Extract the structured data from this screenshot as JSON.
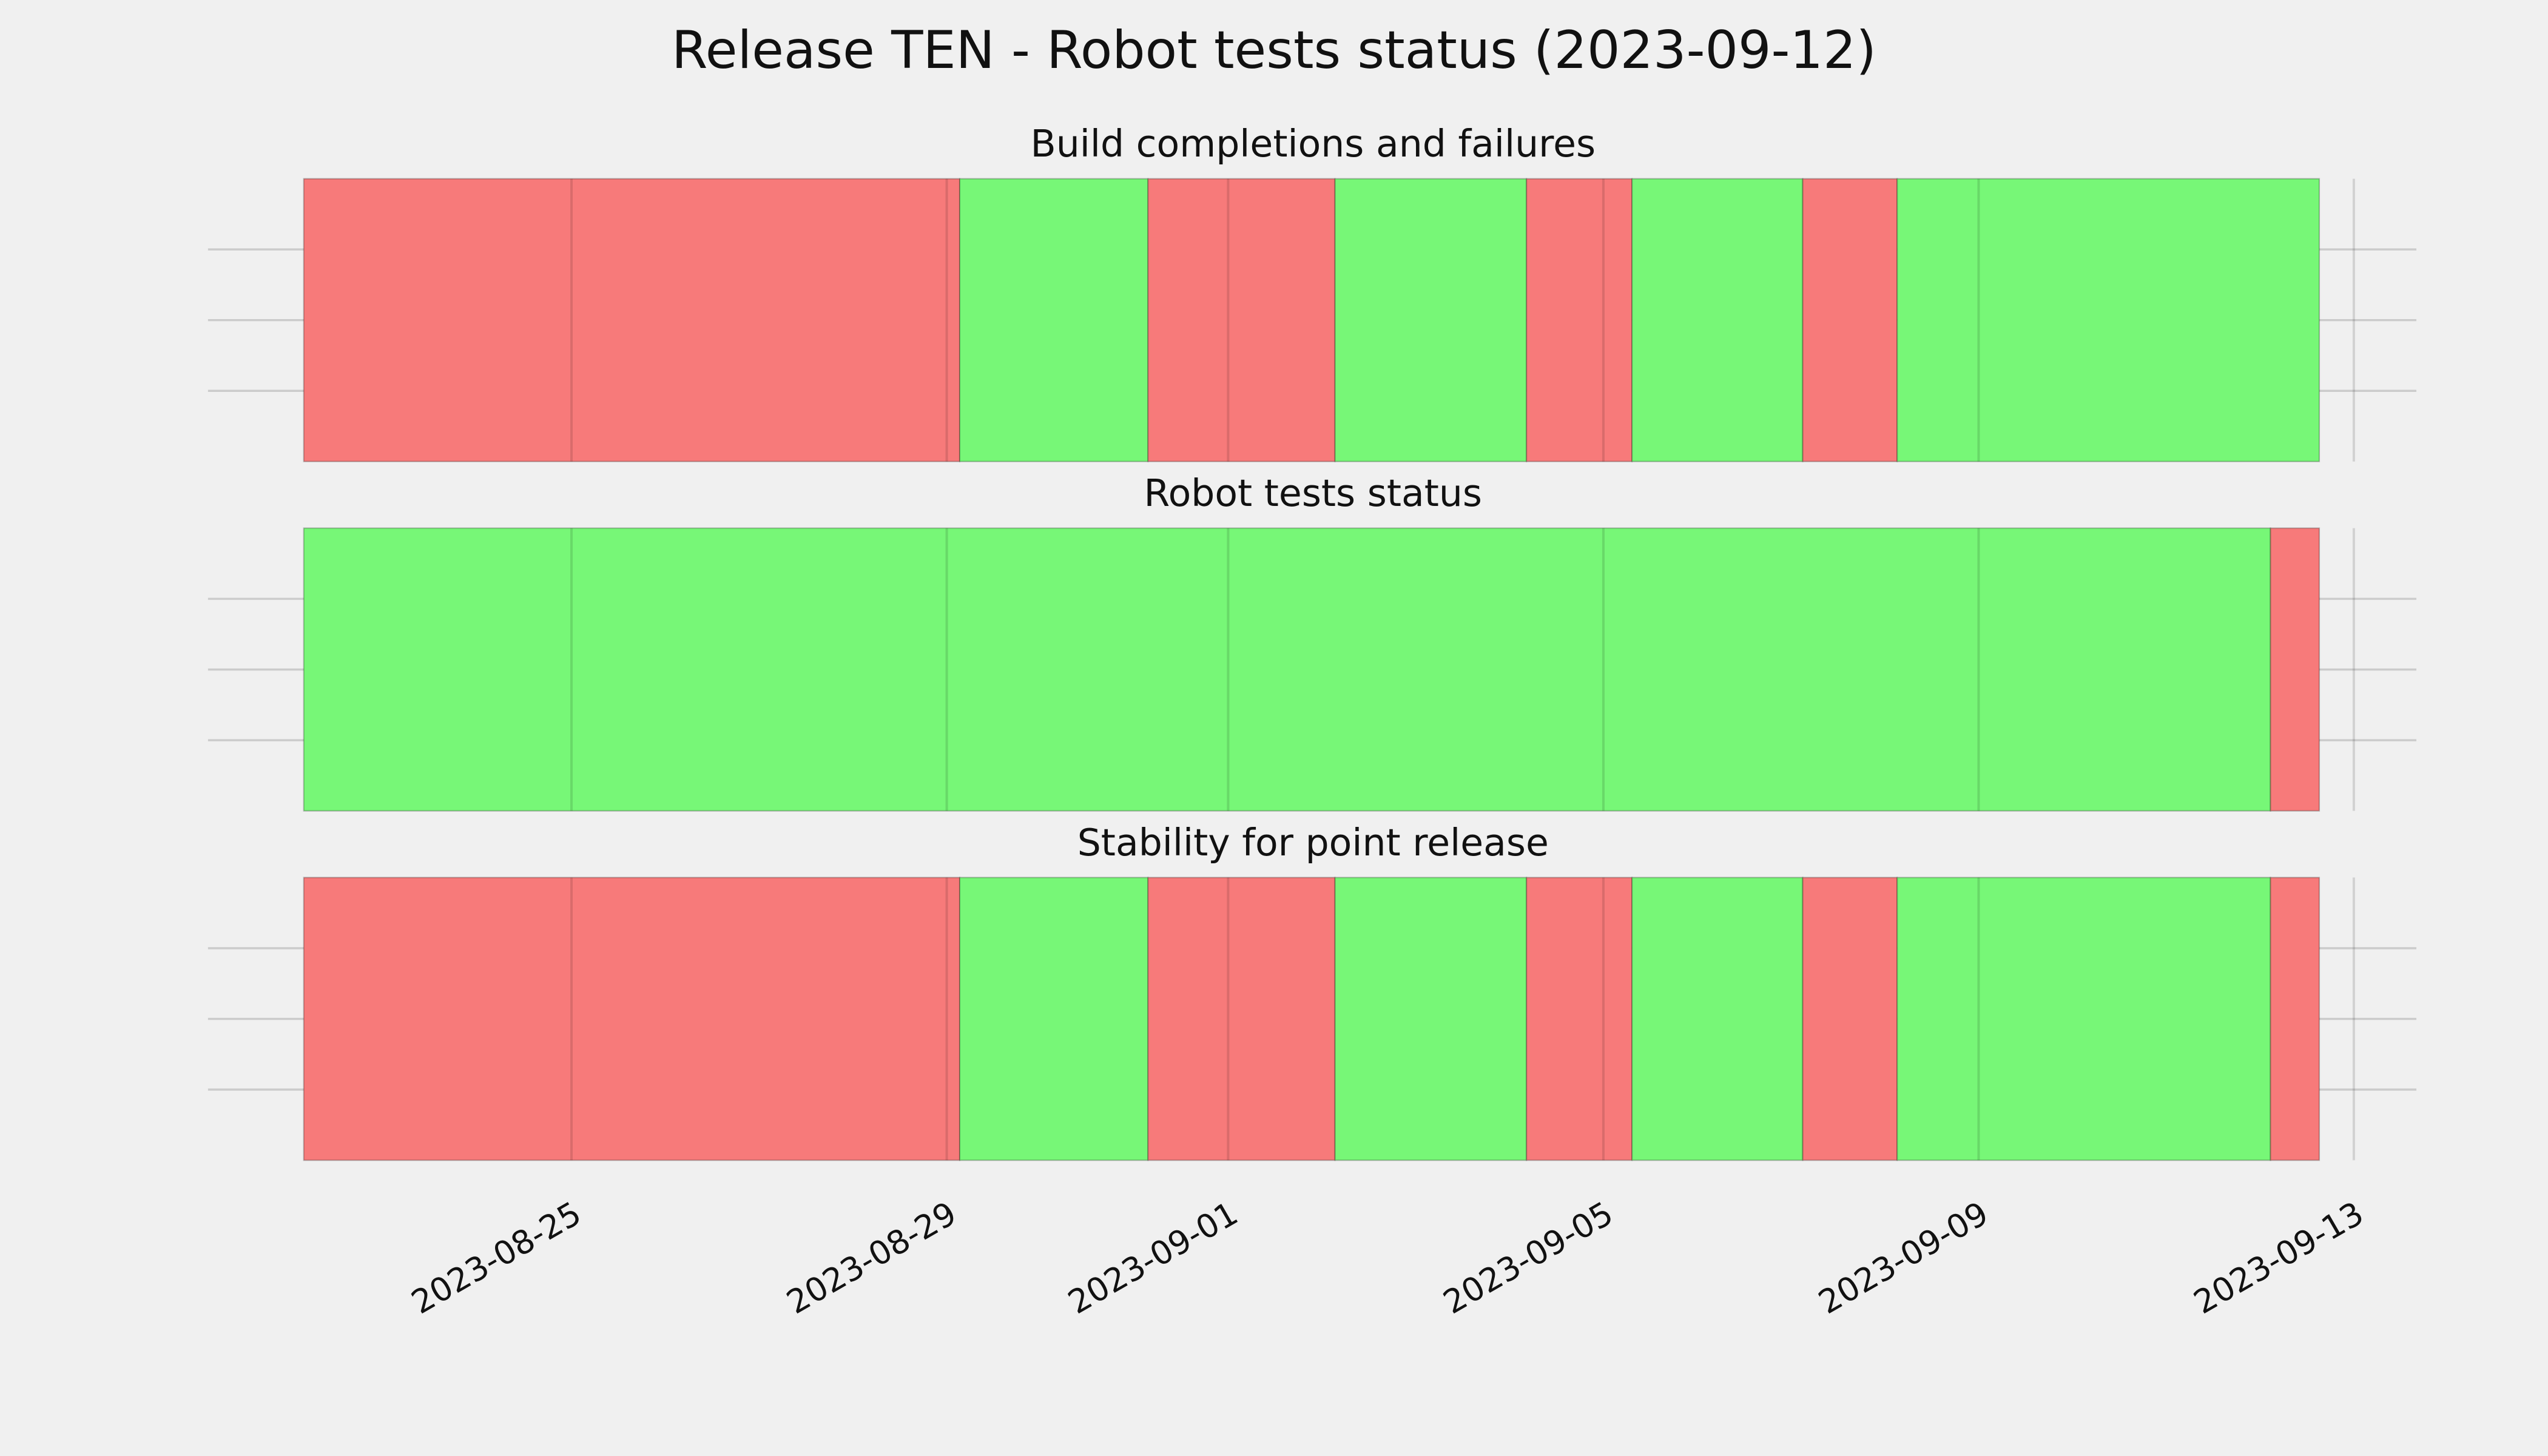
{
  "chart_data": {
    "type": "timeline",
    "title": "Release TEN - Robot tests status (2023-09-12)",
    "xlim": [
      "2023-08-21T03:00",
      "2023-09-13T16:00"
    ],
    "xticks": [
      "2023-08-25",
      "2023-08-29",
      "2023-09-01",
      "2023-09-05",
      "2023-09-09",
      "2023-09-13"
    ],
    "grid": true,
    "panels": [
      {
        "title": "Build completions and failures",
        "spans": [
          {
            "start": "2023-08-22T03:30",
            "end": "2023-08-29T03:20",
            "color": "#f77a7a"
          },
          {
            "start": "2023-08-29T03:20",
            "end": "2023-08-31T03:30",
            "color": "#77f777"
          },
          {
            "start": "2023-08-31T03:30",
            "end": "2023-09-02T03:20",
            "color": "#f77a7a"
          },
          {
            "start": "2023-09-02T03:20",
            "end": "2023-09-04T04:20",
            "color": "#77f777"
          },
          {
            "start": "2023-09-04T04:20",
            "end": "2023-09-05T07:20",
            "color": "#f77a7a"
          },
          {
            "start": "2023-09-05T07:20",
            "end": "2023-09-07T03:00",
            "color": "#77f777"
          },
          {
            "start": "2023-09-07T03:00",
            "end": "2023-09-08T03:10",
            "color": "#f77a7a"
          },
          {
            "start": "2023-09-08T03:10",
            "end": "2023-09-12T15:10",
            "color": "#77f777"
          }
        ]
      },
      {
        "title": "Robot tests status",
        "spans": [
          {
            "start": "2023-08-22T03:30",
            "end": "2023-09-12T02:40",
            "color": "#77f777"
          },
          {
            "start": "2023-09-12T02:40",
            "end": "2023-09-12T15:10",
            "color": "#f77a7a"
          }
        ]
      },
      {
        "title": "Stability for point release",
        "spans": [
          {
            "start": "2023-08-22T03:30",
            "end": "2023-08-29T03:20",
            "color": "#f77a7a"
          },
          {
            "start": "2023-08-29T03:20",
            "end": "2023-08-31T03:30",
            "color": "#77f777"
          },
          {
            "start": "2023-08-31T03:30",
            "end": "2023-09-02T03:20",
            "color": "#f77a7a"
          },
          {
            "start": "2023-09-02T03:20",
            "end": "2023-09-04T04:20",
            "color": "#77f777"
          },
          {
            "start": "2023-09-04T04:20",
            "end": "2023-09-05T07:20",
            "color": "#f77a7a"
          },
          {
            "start": "2023-09-05T07:20",
            "end": "2023-09-07T03:00",
            "color": "#77f777"
          },
          {
            "start": "2023-09-07T03:00",
            "end": "2023-09-08T03:10",
            "color": "#f77a7a"
          },
          {
            "start": "2023-09-08T03:10",
            "end": "2023-09-12T02:40",
            "color": "#77f777"
          },
          {
            "start": "2023-09-12T02:40",
            "end": "2023-09-12T15:10",
            "color": "#f77a7a"
          }
        ]
      }
    ]
  }
}
